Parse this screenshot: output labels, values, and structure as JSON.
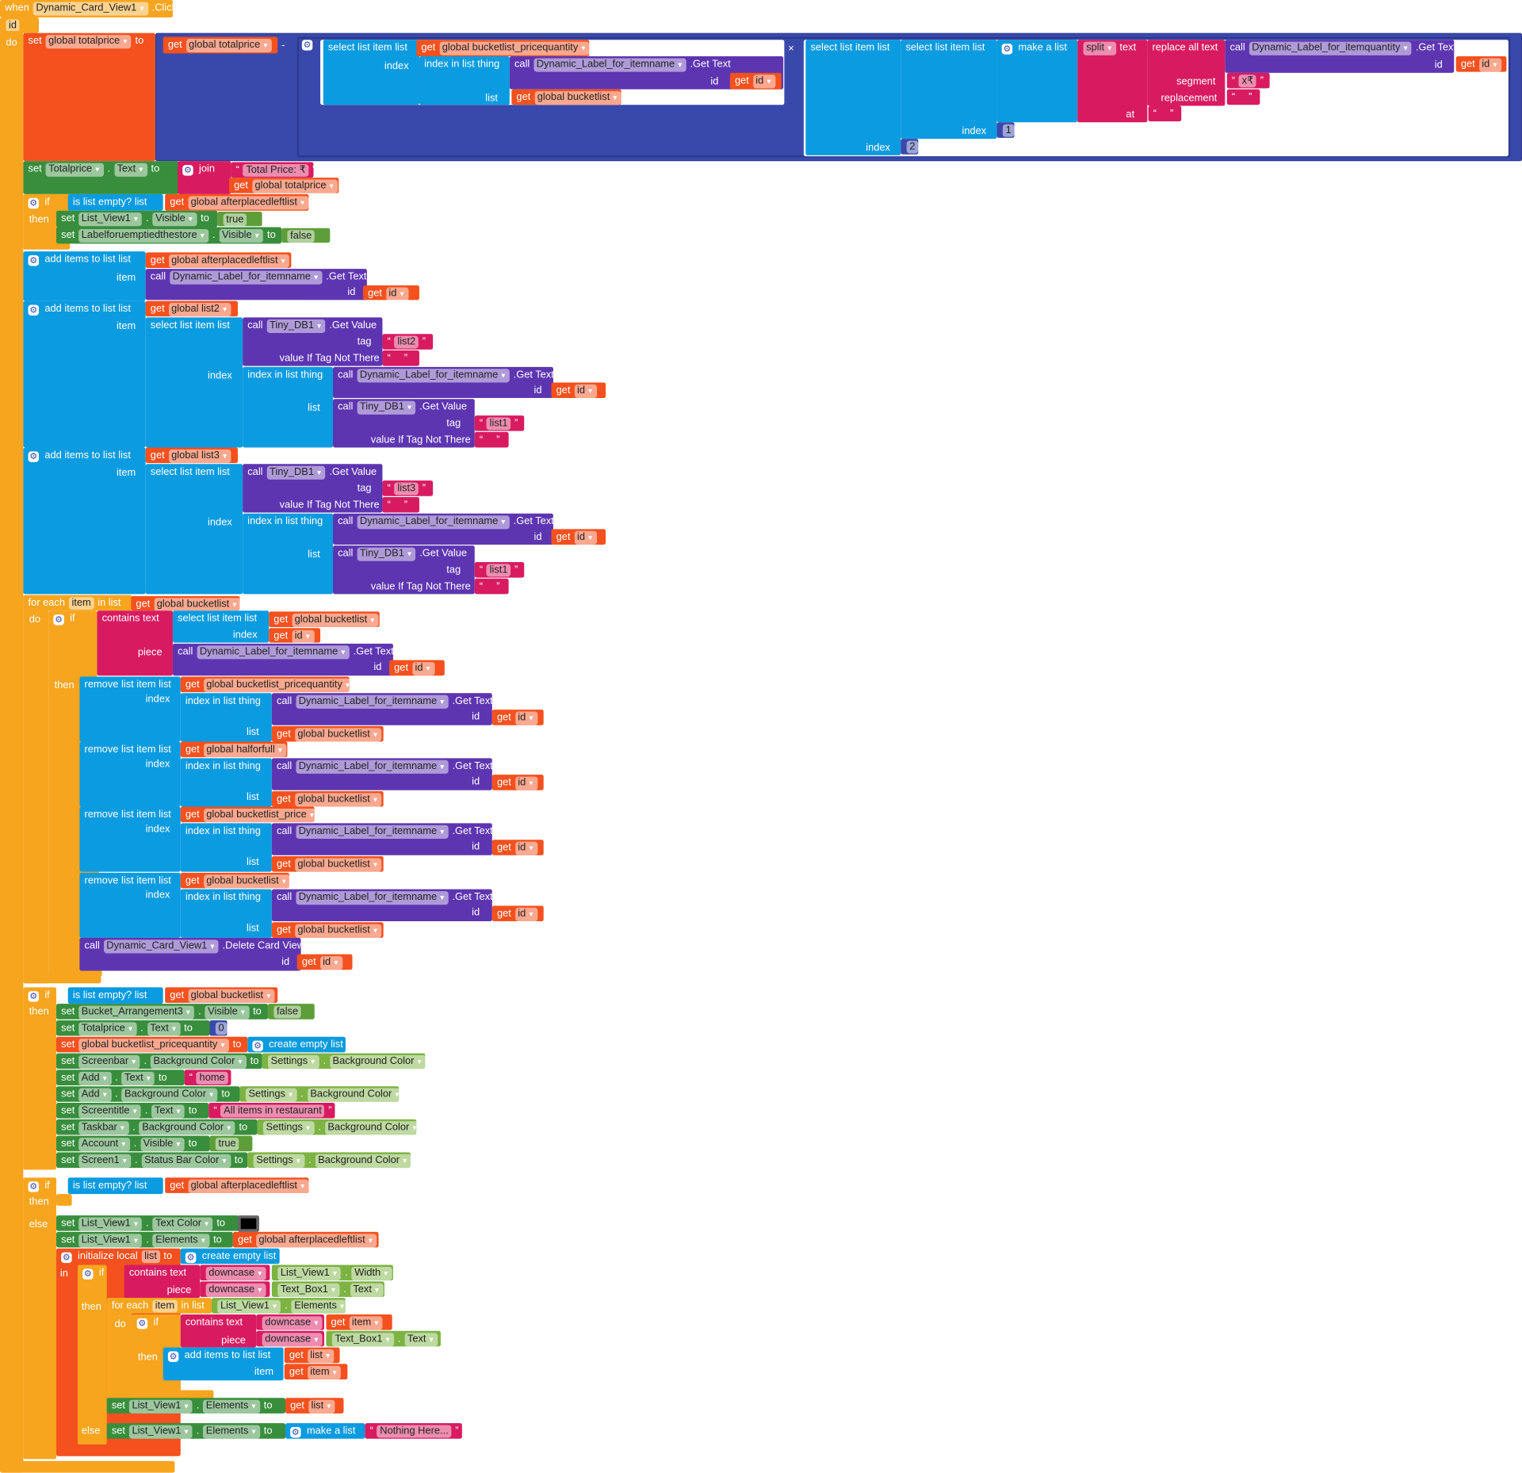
{
  "palette": {
    "event": "#F7A51E",
    "set_global": "#F4511E",
    "get": "#F4511E",
    "math": "#3949AB",
    "list": "#0B9BE0",
    "text": "#D81B60",
    "call": "#5E35B1",
    "set_comp": "#388E3C",
    "comp": "#7CB342",
    "logic": "#5E9E3A",
    "white": "#FFFFFF"
  },
  "common": {
    "get_id": "get {id}",
    "id": "id",
    "index": "index",
    "list": "list",
    "item": "item",
    "tag": "tag",
    "do": "do",
    "then": "then",
    "else": "else",
    "in": "in",
    "if": "@if",
    "piece": "piece",
    "call_itemname": "call {Dynamic_Label_for_itemname} .Get Text",
    "select": "select list item  list",
    "index_in_list": "index in list  thing",
    "get_bucketlist": "get {global bucketlist}",
    "empty_str": "“ [ ] ”",
    "tinydb": "call {Tiny_DB1} .Get Value",
    "vitnt": "value If Tag Not There",
    "add_items": "@add items to list   list",
    "remove": "remove list item  list",
    "contains": "contains  text",
    "downcase": "{downcase}",
    "is_empty": "is list empty?  list",
    "settings_bg": "{Settings} . {Background Color}",
    "create_empty": "@create empty list",
    "get_afterplaced": "get {global afterplacedleftlist}",
    "text_box": "{Text_Box1} . {Text}",
    "set_lv_elements": "set {List_View1} . {Elements} to",
    "get_list": "get {list}",
    "get_item": "get {item}",
    "get_totalprice": "get {global totalprice}"
  },
  "event": {
    "header": "when {Dynamic_Card_View1} .Click",
    "param": "[id]"
  },
  "totalprice_calc": {
    "set": "set {global totalprice} to",
    "minus": "-",
    "get_pricequantity": "get {global bucketlist_pricequantity}",
    "times": "×",
    "make_list": "@make a list",
    "split": "{split} text",
    "at": "at",
    "replace": "replace all text",
    "segment": "segment",
    "replacement": "replacement",
    "call_itemquantity": "call {Dynamic_Label_for_itemquantity} .Get Text",
    "segment_value": "“ [x₹] ”",
    "index_1": "[1]",
    "index_2": "[2]"
  },
  "set_totalprice_text": {
    "set": "set {Totalprice} . {Text} to",
    "join": "@join",
    "label": "“ [Total Price: ₹] ”"
  },
  "if_afterplaced_empty": {
    "set_listview_visible": "set {List_View1} . {Visible} to",
    "true": "[true]",
    "set_label_visible": "set {Labelforuemptiedthestore} . {Visible} to",
    "false": "[false]"
  },
  "add_list2": {
    "get_list2": "get {global list2}",
    "tag_list2": "“ [list2] ”",
    "tag_list1": "“ [list1] ”"
  },
  "add_list3": {
    "get_list3": "get {global list3}",
    "tag_list3": "“ [list3] ”",
    "tag_list1": "“ [list1] ”"
  },
  "for_each_bucket": {
    "header": "for each [item] in list",
    "remove_lists": [
      "get {global bucketlist_pricequantity}",
      "get {global halforfull}",
      "get {global bucketlist_price}",
      "get {global bucketlist}"
    ],
    "delete_card": "call {Dynamic_Card_View1} .Delete Card View"
  },
  "if_bucket_empty": {
    "rows": [
      {
        "set": "set {Bucket_Arrangement3} . {Visible} to",
        "value": "[false]"
      },
      {
        "set": "set {Totalprice} . {Text} to",
        "value": "[0]"
      },
      {
        "set": "set {global bucketlist_pricequantity} to",
        "value": "@create empty list"
      },
      {
        "set": "set {Screenbar} . {Background Color} to",
        "value": "{Settings} . {Background Color}"
      },
      {
        "set": "set {Add} . {Text} to",
        "value": "“ [home] ”"
      },
      {
        "set": "set {Add} . {Background Color} to",
        "value": "{Settings} . {Background Color}"
      },
      {
        "set": "set {Screentitle} . {Text} to",
        "value": "“ [All items in restaurant] ”"
      },
      {
        "set": "set {Taskbar} . {Background Color} to",
        "value": "{Settings} . {Background Color}"
      },
      {
        "set": "set {Account} . {Visible} to",
        "value": "[true]"
      },
      {
        "set": "set {Screen1} . {Status Bar Color} to",
        "value": "{Settings} . {Background Color}"
      }
    ]
  },
  "if_else_filter": {
    "set_text_color": "set {List_View1} . {Text Color} to",
    "text_color_value": "#000000",
    "init_local": "@initialize local [list] to",
    "listview_width": "{List_View1} . {Width}",
    "for_each": "for each [item] in list",
    "listview_elements": "{List_View1} . {Elements}",
    "make_list": "@make a list",
    "nothing_here": "“ [Nothing Here...] ”"
  }
}
